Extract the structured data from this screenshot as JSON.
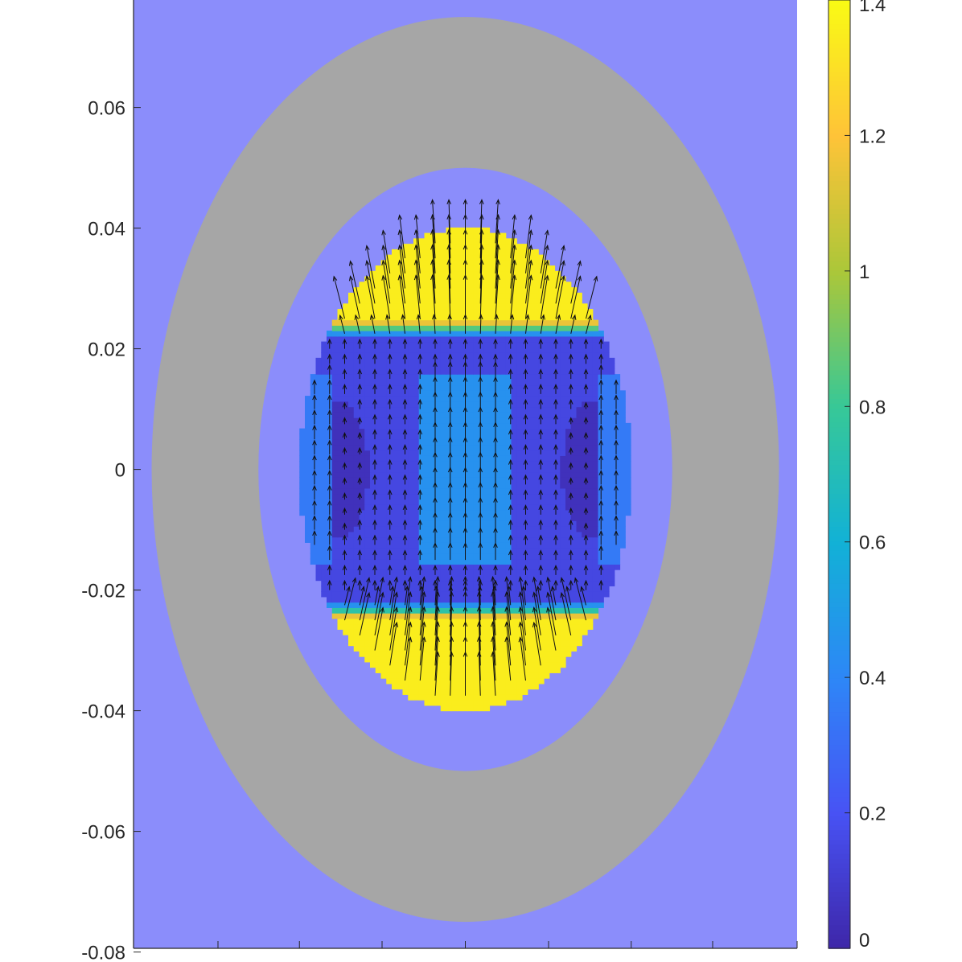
{
  "chart_data": {
    "type": "heatmap",
    "title": "",
    "xlabel": "",
    "ylabel": "",
    "xlim": [
      -0.055,
      0.055
    ],
    "ylim": [
      -0.08,
      0.08
    ],
    "yticks": [
      -0.08,
      -0.06,
      -0.04,
      -0.02,
      0,
      0.02,
      0.04,
      0.06
    ],
    "ytick_labels": [
      "-0.08",
      "-0.06",
      "-0.04",
      "-0.02",
      "0",
      "0.02",
      "0.04",
      "0.06"
    ],
    "xticks": [
      -0.055,
      -0.041,
      -0.0275,
      -0.0138,
      0,
      0.0138,
      0.0275,
      0.041,
      0.055
    ],
    "regions": [
      {
        "name": "background",
        "color": "#8b8dfb",
        "field_value": null
      },
      {
        "name": "outer-shell",
        "shape": "ellipse",
        "center": [
          0,
          0
        ],
        "rx": 0.052,
        "ry": 0.075,
        "color": "#a6a6a6",
        "field_value": null
      },
      {
        "name": "gap",
        "shape": "ellipse",
        "center": [
          0,
          0
        ],
        "rx": 0.0343,
        "ry": 0.05,
        "color": "#8b8dfb",
        "field_value": null
      },
      {
        "name": "core",
        "shape": "ellipse",
        "center": [
          0,
          0
        ],
        "rx": 0.0275,
        "ry": 0.04
      }
    ],
    "field": {
      "quantity_range": [
        0,
        1.4
      ],
      "cap_value": 1.3,
      "center_value": 0.4,
      "band_min": 0.15,
      "side_lobe_min": 0.05,
      "side_lobe_centers_x": [
        -0.0215,
        0.0215
      ]
    },
    "quiver": {
      "direction": "up (+y) in the central core, spreading radially outward in the upper and lower caps",
      "max_magnitude": 1.3,
      "grid_step": 0.0025
    },
    "colorbar": {
      "min": 0,
      "max": 1.4,
      "ticks": [
        0,
        0.2,
        0.4,
        0.6,
        0.8,
        1,
        1.2,
        1.4
      ],
      "tick_labels": [
        "0",
        "0.2",
        "0.4",
        "0.6",
        "0.8",
        "1",
        "1.2",
        "1.4"
      ],
      "colormap": "parula"
    },
    "grid": false,
    "legend": "none"
  }
}
